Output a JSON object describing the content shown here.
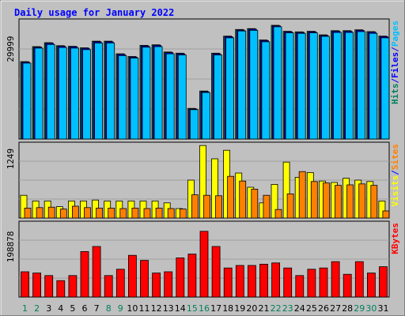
{
  "chart_data": {
    "type": "bar",
    "title": "Daily usage for January 2022",
    "categories": [
      "1",
      "2",
      "3",
      "4",
      "5",
      "6",
      "7",
      "8",
      "9",
      "10",
      "11",
      "12",
      "13",
      "14",
      "15",
      "16",
      "17",
      "18",
      "19",
      "20",
      "21",
      "22",
      "23",
      "24",
      "25",
      "26",
      "27",
      "28",
      "29",
      "30",
      "31"
    ],
    "weekend_days": [
      "1",
      "2",
      "8",
      "9",
      "15",
      "16",
      "22",
      "23",
      "29",
      "30"
    ],
    "panels": [
      {
        "name": "hits-pages",
        "ytick": "29999",
        "ymax": 40000,
        "legend": [
          {
            "text": "Hits",
            "color": "#00805c"
          },
          {
            "text": "/",
            "color": "#0000ff"
          },
          {
            "text": "Files",
            "color": "#0000ff"
          },
          {
            "text": "/",
            "color": "#0000ff"
          },
          {
            "text": "Pages",
            "color": "#00c0ff"
          }
        ],
        "series": [
          {
            "name": "Hits",
            "color": "#00805c",
            "values": [
              25800,
              30800,
              32100,
              31100,
              30900,
              30400,
              32600,
              32600,
              28400,
              27500,
              31200,
              31400,
              29000,
              28600,
              10200,
              16000,
              28600,
              34300,
              36500,
              36800,
              33000,
              37900,
              35900,
              35700,
              35900,
              34700,
              36100,
              36100,
              36400,
              35800,
              34300
            ]
          },
          {
            "name": "Files",
            "color": "#0000ff",
            "values": [
              25600,
              30600,
              31900,
              30900,
              30700,
              30200,
              32400,
              32400,
              28200,
              27300,
              31000,
              31200,
              28800,
              28400,
              10000,
              15800,
              28400,
              34100,
              36300,
              36600,
              32800,
              37700,
              35700,
              35500,
              35700,
              34500,
              35900,
              35900,
              36200,
              35600,
              34100
            ]
          },
          {
            "name": "Pages",
            "color": "#00c0ff",
            "values": [
              25300,
              30300,
              31500,
              30500,
              30300,
              29800,
              32000,
              32000,
              27800,
              27000,
              30600,
              30800,
              28400,
              28000,
              9800,
              15500,
              28000,
              33700,
              36000,
              36200,
              32400,
              37400,
              35400,
              35200,
              35400,
              34200,
              35500,
              35500,
              35800,
              35200,
              33700
            ]
          }
        ]
      },
      {
        "name": "visits-sites",
        "ytick": "1249",
        "ymax": 1600,
        "legend": [
          {
            "text": "Visits",
            "color": "#ffff00"
          },
          {
            "text": "/",
            "color": "#0000ff"
          },
          {
            "text": "Sites",
            "color": "#ff8000"
          }
        ],
        "series": [
          {
            "name": "Visits",
            "color": "#ffff00",
            "values": [
              480,
              360,
              360,
              240,
              360,
              360,
              380,
              360,
              360,
              360,
              360,
              360,
              320,
              200,
              800,
              1530,
              1250,
              1430,
              950,
              650,
              320,
              710,
              1180,
              860,
              960,
              780,
              750,
              840,
              800,
              770,
              360
            ]
          },
          {
            "name": "Sites",
            "color": "#ff8000",
            "values": [
              210,
              220,
              230,
              190,
              250,
              220,
              210,
              210,
              200,
              210,
              200,
              210,
              200,
              190,
              490,
              480,
              470,
              880,
              780,
              610,
              480,
              180,
              510,
              980,
              770,
              740,
              690,
              700,
              720,
              690,
              150
            ]
          }
        ]
      },
      {
        "name": "kbytes",
        "ytick": "198878",
        "ymax": 300000,
        "legend": [
          {
            "text": "KBytes",
            "color": "#ff0000"
          }
        ],
        "series": [
          {
            "name": "KBytes",
            "color": "#ff0000",
            "values": [
              100000,
              95000,
              85000,
              65000,
              85000,
              180000,
              200000,
              85000,
              110000,
              165000,
              145000,
              95000,
              100000,
              155000,
              170000,
              260000,
              200000,
              115000,
              125000,
              125000,
              130000,
              135000,
              115000,
              85000,
              110000,
              115000,
              140000,
              90000,
              140000,
              95000,
              120000
            ]
          }
        ]
      }
    ]
  }
}
